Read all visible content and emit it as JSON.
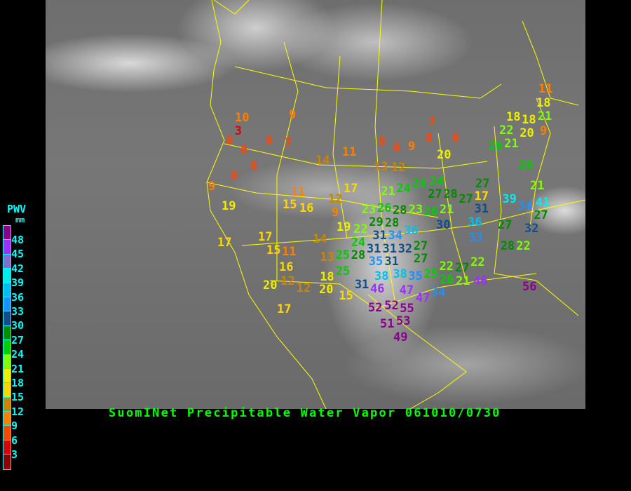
{
  "title": "SuomINet Precipitable Water Vapor 061010/0730",
  "legend": {
    "title": "PWV",
    "unit": "mm",
    "labels": [
      "48",
      "45",
      "42",
      "39",
      "36",
      "33",
      "30",
      "27",
      "24",
      "21",
      "18",
      "15",
      "12",
      "9",
      "6",
      "3"
    ],
    "colors": [
      "#8b008b",
      "#9b30ff",
      "#7f70d0",
      "#00eeee",
      "#00bfee",
      "#1e90ff",
      "#104e8b",
      "#008b00",
      "#00cd00",
      "#7fff00",
      "#eeee00",
      "#ffd700",
      "#cd8500",
      "#ff8000",
      "#ff4500",
      "#dd0000",
      "#8b0000"
    ]
  },
  "stations": [
    10,
    3,
    8,
    6,
    6,
    7,
    9,
    8,
    8,
    9,
    19,
    14,
    11,
    8,
    6,
    9,
    7,
    8,
    6,
    20,
    13,
    12,
    17,
    11,
    15,
    16,
    12,
    9,
    21,
    24,
    24,
    24,
    28,
    27,
    23,
    26,
    28,
    23,
    26,
    21,
    19,
    22,
    29,
    28,
    36,
    31,
    34,
    24,
    31,
    31,
    32,
    27,
    35,
    31,
    27,
    25,
    28,
    13,
    14,
    17,
    17,
    15,
    11,
    16,
    12,
    12,
    20,
    18,
    20,
    25,
    38,
    38,
    35,
    31,
    46,
    47,
    47,
    15,
    17,
    52,
    52,
    55,
    53,
    51,
    49,
    34,
    25,
    26,
    22,
    11,
    18,
    21,
    18,
    18,
    20,
    9,
    22,
    21,
    26,
    26,
    27,
    27,
    17,
    31,
    39,
    34,
    41,
    21,
    27,
    30,
    36,
    27,
    32,
    33,
    28,
    22,
    22,
    27,
    21,
    46,
    56
  ]
}
